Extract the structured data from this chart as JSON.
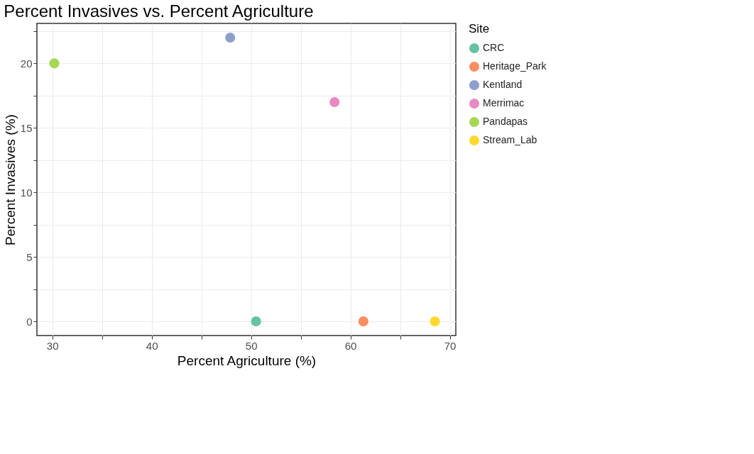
{
  "chart_data": {
    "type": "scatter",
    "title": "Percent Invasives vs. Percent Agriculture",
    "xlabel": "Percent Agriculture (%)",
    "ylabel": "Percent Invasives (%)",
    "legend_title": "Site",
    "legend": "right",
    "marker": "circle",
    "grid": true,
    "xlim": [
      28.45,
      70.6
    ],
    "ylim": [
      -1.1,
      23.1
    ],
    "xticks": [
      30,
      {
        "value": 35,
        "label": null
      },
      40,
      {
        "value": 45,
        "label": null
      },
      50,
      {
        "value": 55,
        "label": null
      },
      60,
      {
        "value": 65,
        "label": null
      },
      70
    ],
    "yticks": [
      0,
      {
        "value": 2.5,
        "label": null
      },
      5,
      {
        "value": 7.5,
        "label": null
      },
      10,
      {
        "value": 12.5,
        "label": null
      },
      15,
      {
        "value": 17.5,
        "label": null
      },
      20,
      {
        "value": 22.5,
        "label": null
      }
    ],
    "series": [
      {
        "name": "CRC",
        "color": "#66c2a5",
        "x": [
          50.5
        ],
        "values": [
          0
        ]
      },
      {
        "name": "Heritage_Park",
        "color": "#fc8d62",
        "x": [
          61.3
        ],
        "values": [
          0
        ]
      },
      {
        "name": "Kentland",
        "color": "#8da0cb",
        "x": [
          47.9
        ],
        "values": [
          22
        ]
      },
      {
        "name": "Merrimac",
        "color": "#e78ac3",
        "x": [
          58.4
        ],
        "values": [
          17
        ]
      },
      {
        "name": "Pandapas",
        "color": "#a6d854",
        "x": [
          30.2
        ],
        "values": [
          20
        ]
      },
      {
        "name": "Stream_Lab",
        "color": "#ffd92f",
        "x": [
          68.5
        ],
        "values": [
          0
        ]
      }
    ]
  }
}
